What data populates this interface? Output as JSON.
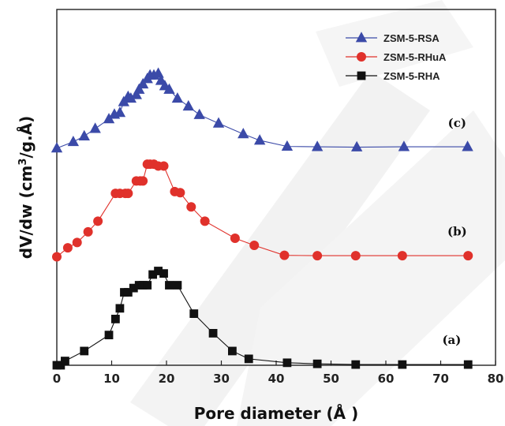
{
  "chart_data": {
    "type": "line",
    "xlabel": "Pore diameter (Å )",
    "ylabel_prefix": "dV/dw (cm",
    "ylabel_sup": "3",
    "ylabel_suffix": "/g.Å)",
    "xlim": [
      0,
      80
    ],
    "xticks": [
      0,
      10,
      20,
      30,
      40,
      50,
      60,
      70,
      80
    ],
    "ylim": [
      0,
      1
    ],
    "grid": false,
    "legend": "top-right",
    "series": [
      {
        "name": "ZSM-5-RSA",
        "label": "(c)",
        "color": "#3b4aa8",
        "marker": "triangle",
        "offset": 0.61,
        "label_x": 73,
        "x": [
          0,
          3,
          5,
          7,
          9.5,
          10.5,
          11.5,
          12.2,
          13,
          13.5,
          14.5,
          15,
          15.7,
          16.5,
          17,
          17.7,
          18.5,
          19,
          19.7,
          20.5,
          22,
          24,
          26,
          29.5,
          34,
          37,
          42,
          47.5,
          54.7,
          63.3,
          74.9
        ],
        "y": [
          0.0,
          0.018,
          0.034,
          0.055,
          0.082,
          0.095,
          0.1,
          0.13,
          0.145,
          0.14,
          0.15,
          0.165,
          0.18,
          0.195,
          0.205,
          0.205,
          0.21,
          0.19,
          0.175,
          0.165,
          0.14,
          0.118,
          0.094,
          0.07,
          0.04,
          0.022,
          0.005,
          0.004,
          0.003,
          0.004,
          0.004
        ]
      },
      {
        "name": "ZSM-5-RHuA",
        "label": "(b)",
        "color": "#e0312b",
        "marker": "circle",
        "offset": 0.305,
        "label_x": 73,
        "x": [
          0,
          2,
          3.7,
          5.7,
          7.5,
          10.7,
          11.5,
          12.5,
          13,
          14.5,
          15.2,
          15.7,
          16.5,
          17,
          17.7,
          18.5,
          19.5,
          21.5,
          22.5,
          24.5,
          27,
          32.5,
          36,
          41.5,
          47.5,
          54.5,
          63,
          75
        ],
        "y": [
          0.0,
          0.025,
          0.04,
          0.07,
          0.1,
          0.178,
          0.178,
          0.178,
          0.178,
          0.213,
          0.213,
          0.213,
          0.26,
          0.26,
          0.26,
          0.255,
          0.255,
          0.183,
          0.18,
          0.14,
          0.1,
          0.052,
          0.032,
          0.004,
          0.003,
          0.003,
          0.003,
          0.003
        ]
      },
      {
        "name": "ZSM-5-RHA",
        "label": "(a)",
        "color": "#111111",
        "marker": "square",
        "offset": 0.0,
        "label_x": 72,
        "x": [
          0,
          0.7,
          1.5,
          5,
          9.5,
          10.7,
          11.5,
          12.3,
          13,
          14,
          15,
          15.7,
          16.5,
          17.5,
          18.5,
          19.5,
          20.5,
          22,
          25,
          28.5,
          32,
          35,
          42,
          47.5,
          54.5,
          63,
          75
        ],
        "y": [
          0.0,
          0.0,
          0.012,
          0.04,
          0.085,
          0.13,
          0.16,
          0.205,
          0.205,
          0.217,
          0.225,
          0.225,
          0.225,
          0.255,
          0.265,
          0.258,
          0.225,
          0.225,
          0.145,
          0.09,
          0.04,
          0.018,
          0.007,
          0.004,
          0.002,
          0.002,
          0.002
        ]
      }
    ]
  }
}
